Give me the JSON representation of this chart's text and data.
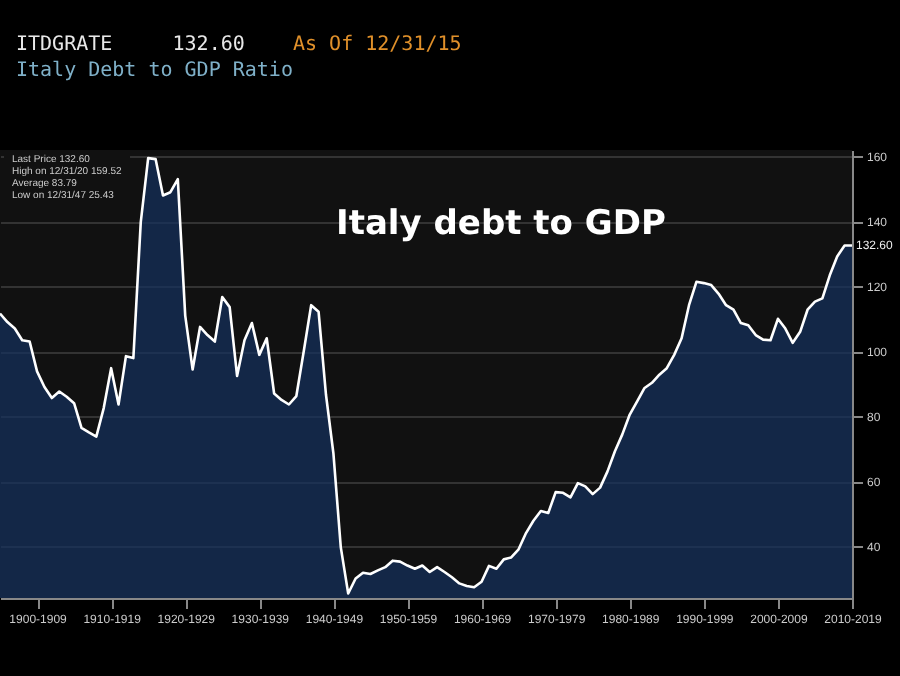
{
  "chart_data": {
    "type": "area",
    "title": "Italy debt to GDP",
    "subtitle": "Italy Debt to GDP Ratio",
    "annotations": [
      "ITDGRATE     132.60",
      "As Of 12/31/15",
      "Last Price 132.60",
      "High on 12/31/20 159.52",
      "Average 83.79",
      "Low on 12/31/47 25.43",
      "132.60"
    ],
    "categories": [
      null,
      null,
      null,
      null,
      null,
      "1900-1909",
      null,
      null,
      null,
      null,
      null,
      null,
      null,
      null,
      null,
      "1910-1919",
      null,
      null,
      null,
      null,
      null,
      null,
      null,
      null,
      null,
      "1920-1929",
      null,
      null,
      null,
      null,
      null,
      null,
      null,
      null,
      null,
      "1930-1939",
      null,
      null,
      null,
      null,
      null,
      null,
      null,
      null,
      null,
      "1940-1949",
      null,
      null,
      null,
      null,
      null,
      null,
      null,
      null,
      null,
      "1950-1959",
      null,
      null,
      null,
      null,
      null,
      null,
      null,
      null,
      null,
      "1960-1969",
      null,
      null,
      null,
      null,
      null,
      null,
      null,
      null,
      null,
      "1970-1979",
      null,
      null,
      null,
      null,
      null,
      null,
      null,
      null,
      null,
      "1980-1989",
      null,
      null,
      null,
      null,
      null,
      null,
      null,
      null,
      null,
      "1990-1999",
      null,
      null,
      null,
      null,
      null,
      null,
      null,
      null,
      null,
      "2000-2009",
      null,
      null,
      null,
      null,
      null,
      null,
      null,
      null,
      null,
      "2010-2019"
    ],
    "series": [
      {
        "color": "#14315e",
        "values": [
          111.6,
          109,
          107,
          103.4,
          103,
          93.8,
          89,
          85.6,
          87.6,
          86,
          84,
          76.4,
          75,
          73.7,
          82.5,
          94.8,
          83.6,
          98.5,
          97.9,
          139.8,
          159.5,
          159.2,
          148,
          149,
          153,
          111,
          94.4,
          107.5,
          105,
          103,
          116.7,
          113.6,
          92.4,
          103.4,
          108.7,
          98.9,
          104,
          87,
          85,
          83.6,
          86.2,
          100,
          114.2,
          112.2,
          86.6,
          68.6,
          39.6,
          25.4,
          30,
          31.8,
          31.4,
          32.5,
          33.5,
          35.5,
          35.2,
          34,
          33,
          34,
          32,
          33.5,
          32,
          30.4,
          28.5,
          27.7,
          27.3,
          29,
          33.9,
          33,
          35.9,
          36.5,
          39,
          44,
          47.8,
          50.8,
          50.2,
          56.6,
          56.4,
          55,
          59.4,
          58.4,
          56,
          58,
          63,
          69.2,
          74.4,
          80.5,
          84.6,
          88.7,
          90.3,
          92.8,
          94.8,
          98.9,
          104,
          114.2,
          121.4,
          121,
          120.4,
          117.7,
          114.2,
          112.8,
          108.7,
          108,
          105,
          103.6,
          103.4,
          110,
          107,
          102.6,
          106,
          112.8,
          115.3,
          116.3,
          123.4,
          129.2,
          132.6,
          132.6
        ]
      }
    ],
    "ylim": [
      24,
      162
    ],
    "yticks": [
      40,
      60,
      80,
      100,
      120,
      140,
      160
    ],
    "grid": "y"
  }
}
